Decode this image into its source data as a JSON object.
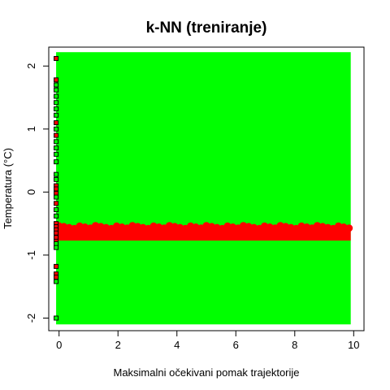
{
  "chart_data": {
    "type": "scatter",
    "title": "k-NN (treniranje)",
    "xlabel": "Maksimalni očekivani pomak trajektorije",
    "ylabel": "Temperatura (°C)",
    "xlim": [
      -0.35,
      10.35
    ],
    "ylim": [
      -2.2,
      2.3
    ],
    "xticks": [
      0,
      2,
      4,
      6,
      8,
      10
    ],
    "yticks": [
      -2,
      -1,
      0,
      1,
      2
    ],
    "grid": false,
    "colors": {
      "background_region": "#00ff00",
      "decision_band": "#ff0000",
      "point_fill_red": "#ff0000",
      "point_fill_green": "#00ff00",
      "point_edge": "#000000"
    },
    "decision_regions": {
      "background_class": "green",
      "band_class": "red",
      "band_y_range": [
        -0.77,
        -0.48
      ],
      "x_range": [
        -0.1,
        9.9
      ],
      "y_range": [
        -2.1,
        2.22
      ]
    },
    "series": [
      {
        "marker": "square",
        "x": [
          -0.1,
          -0.1,
          -0.1,
          -0.1,
          -0.1,
          -0.1,
          -0.1,
          -0.1,
          -0.1,
          -0.1,
          -0.1,
          -0.1,
          -0.1,
          -0.1,
          -0.1,
          -0.1,
          -0.1,
          -0.1,
          -0.1,
          -0.1,
          -0.1,
          -0.1,
          -0.1,
          -0.1,
          -0.1,
          -0.1,
          -0.1,
          -0.1,
          -0.1,
          -0.1,
          -0.1,
          -0.1,
          -0.1,
          -0.1,
          -0.1,
          -0.1,
          -0.1
        ],
        "y": [
          2.12,
          1.78,
          1.7,
          1.62,
          1.52,
          1.42,
          1.32,
          1.22,
          1.1,
          1.0,
          0.9,
          0.8,
          0.7,
          0.6,
          0.48,
          0.28,
          0.2,
          0.1,
          0.05,
          -0.02,
          -0.08,
          -0.18,
          -0.28,
          -0.38,
          -0.5,
          -0.55,
          -0.6,
          -0.65,
          -0.72,
          -0.78,
          -0.82,
          -0.88,
          -1.18,
          -1.3,
          -1.35,
          -1.42,
          -2.0
        ],
        "class": [
          "red",
          "red",
          "green",
          "green",
          "green",
          "green",
          "green",
          "green",
          "red",
          "green",
          "red",
          "green",
          "green",
          "green",
          "green",
          "green",
          "green",
          "red",
          "red",
          "red",
          "green",
          "red",
          "green",
          "green",
          "red",
          "red",
          "red",
          "red",
          "red",
          "red",
          "green",
          "green",
          "red",
          "red",
          "red",
          "green",
          "green"
        ]
      }
    ]
  }
}
